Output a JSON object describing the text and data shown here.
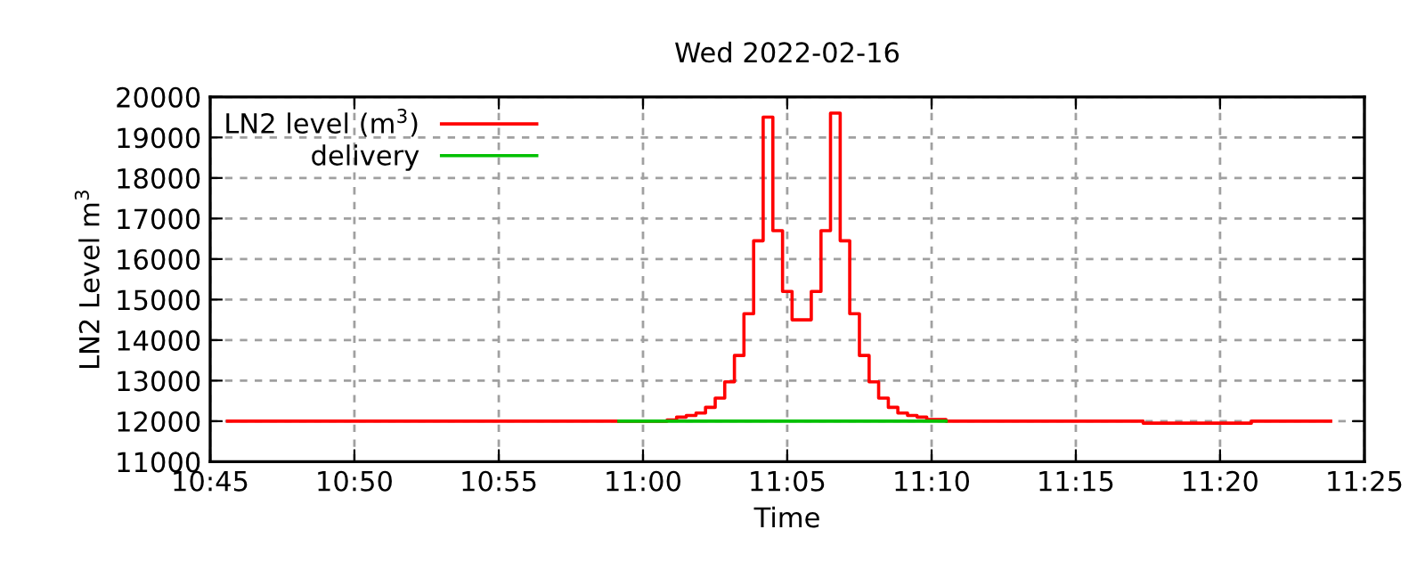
{
  "chart_data": {
    "type": "step",
    "title": "Wed 2022-02-16",
    "xlabel": "Time",
    "ylabel": "LN2 Level m$^{3}$",
    "series": [
      {
        "name": "LN2 level (m$^{3}$)",
        "color": "#ff0000",
        "x": [
          10.76,
          11.0139,
          11.0194,
          11.025,
          11.0306,
          11.0361,
          11.0417,
          11.0472,
          11.0528,
          11.0583,
          11.0639,
          11.0694,
          11.075,
          11.0806,
          11.0861,
          11.0972,
          11.1028,
          11.1083,
          11.1139,
          11.1194,
          11.125,
          11.1306,
          11.1361,
          11.1417,
          11.1472,
          11.1528,
          11.1583,
          11.1639,
          11.175,
          11.2889,
          11.3514,
          11.3972
        ],
        "values": [
          12000,
          12030,
          12100,
          12140,
          12200,
          12340,
          12570,
          12970,
          13620,
          14650,
          16450,
          19500,
          16700,
          15200,
          14500,
          15200,
          16700,
          19600,
          16450,
          14650,
          13620,
          12970,
          12570,
          12340,
          12200,
          12140,
          12100,
          12040,
          12000,
          11950,
          12000,
          12000
        ]
      },
      {
        "name": "delivery",
        "color": "#00c000",
        "x": [
          10.9861,
          11.175
        ],
        "values": [
          12000,
          12000
        ]
      }
    ],
    "xlim": [
      10.75,
      11.4167
    ],
    "xticks": [
      {
        "value": 10.75,
        "label": "10:45"
      },
      {
        "value": 10.8333,
        "label": "10:50"
      },
      {
        "value": 10.9167,
        "label": "10:55"
      },
      {
        "value": 11,
        "label": "11:00"
      },
      {
        "value": 11.0833,
        "label": "11:05"
      },
      {
        "value": 11.1667,
        "label": "11:10"
      },
      {
        "value": 11.25,
        "label": "11:15"
      },
      {
        "value": 11.3333,
        "label": "11:20"
      },
      {
        "value": 11.4167,
        "label": "11:25"
      }
    ],
    "ylim": [
      11000,
      20000
    ],
    "yticks": [
      11000,
      12000,
      13000,
      14000,
      15000,
      16000,
      17000,
      18000,
      19000,
      20000
    ],
    "grid": true,
    "legend": "top left",
    "line_style": "solid",
    "marker": "none"
  }
}
